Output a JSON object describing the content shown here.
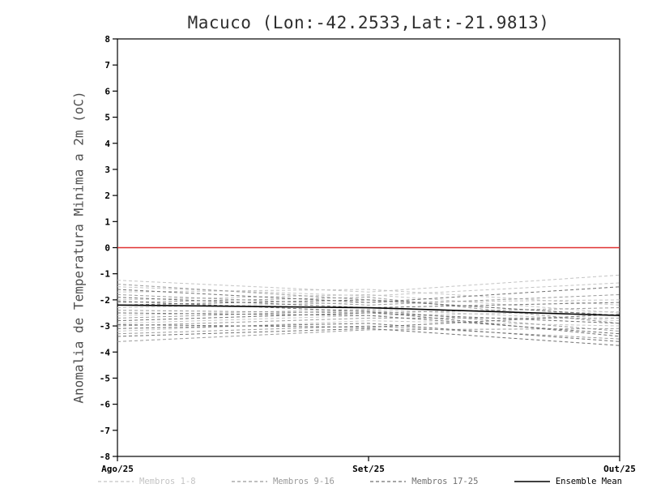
{
  "chart_data": {
    "type": "line",
    "title": "Macuco (Lon:-42.2533,Lat:-21.9813)",
    "ylabel": "Anomalia de Temperatura Minima a 2m (oC)",
    "xlabel": "",
    "categories": [
      "Ago/25",
      "Set/25",
      "Out/25"
    ],
    "ylim": [
      -8,
      8
    ],
    "ytick_step": 1,
    "grid": false,
    "zero_line_color": "#e03030",
    "legend_position": "bottom",
    "groups": [
      {
        "name": "Membros 1-8",
        "color": "#c4c4c4",
        "dash": "4,3"
      },
      {
        "name": "Membros 9-16",
        "color": "#9a9a9a",
        "dash": "4,3"
      },
      {
        "name": "Membros 17-25",
        "color": "#707070",
        "dash": "4,3"
      },
      {
        "name": "Ensemble Mean",
        "color": "#000000",
        "dash": ""
      }
    ],
    "series": [
      {
        "name": "Membro 1",
        "group": 0,
        "values": [
          -1.25,
          -1.7,
          -1.05
        ]
      },
      {
        "name": "Membro 2",
        "group": 0,
        "values": [
          -1.5,
          -1.85,
          -1.35
        ]
      },
      {
        "name": "Membro 3",
        "group": 0,
        "values": [
          -1.7,
          -1.6,
          -2.2
        ]
      },
      {
        "name": "Membro 4",
        "group": 0,
        "values": [
          -2.0,
          -1.8,
          -2.5
        ]
      },
      {
        "name": "Membro 5",
        "group": 0,
        "values": [
          -2.3,
          -2.1,
          -2.0
        ]
      },
      {
        "name": "Membro 6",
        "group": 0,
        "values": [
          -2.6,
          -2.35,
          -2.8
        ]
      },
      {
        "name": "Membro 7",
        "group": 0,
        "values": [
          -2.9,
          -2.6,
          -2.45
        ]
      },
      {
        "name": "Membro 8",
        "group": 0,
        "values": [
          -3.2,
          -2.8,
          -3.0
        ]
      },
      {
        "name": "Membro 9",
        "group": 1,
        "values": [
          -1.4,
          -2.0,
          -2.6
        ]
      },
      {
        "name": "Membro 10",
        "group": 1,
        "values": [
          -1.8,
          -2.2,
          -1.8
        ]
      },
      {
        "name": "Membro 11",
        "group": 1,
        "values": [
          -2.1,
          -1.9,
          -2.9
        ]
      },
      {
        "name": "Membro 12",
        "group": 1,
        "values": [
          -2.4,
          -2.5,
          -2.3
        ]
      },
      {
        "name": "Membro 13",
        "group": 1,
        "values": [
          -2.7,
          -2.4,
          -3.2
        ]
      },
      {
        "name": "Membro 14",
        "group": 1,
        "values": [
          -3.0,
          -2.7,
          -2.7
        ]
      },
      {
        "name": "Membro 15",
        "group": 1,
        "values": [
          -3.3,
          -3.0,
          -3.5
        ]
      },
      {
        "name": "Membro 16",
        "group": 1,
        "values": [
          -3.6,
          -3.15,
          -3.1
        ]
      },
      {
        "name": "Membro 17",
        "group": 2,
        "values": [
          -1.6,
          -2.1,
          -1.5
        ]
      },
      {
        "name": "Membro 18",
        "group": 2,
        "values": [
          -1.9,
          -2.3,
          -2.1
        ]
      },
      {
        "name": "Membro 19",
        "group": 2,
        "values": [
          -2.2,
          -2.0,
          -2.6
        ]
      },
      {
        "name": "Membro 20",
        "group": 2,
        "values": [
          -2.5,
          -2.6,
          -3.3
        ]
      },
      {
        "name": "Membro 21",
        "group": 2,
        "values": [
          -2.8,
          -2.5,
          -2.9
        ]
      },
      {
        "name": "Membro 22",
        "group": 2,
        "values": [
          -3.1,
          -2.9,
          -3.6
        ]
      },
      {
        "name": "Membro 23",
        "group": 2,
        "values": [
          -3.4,
          -3.1,
          -3.75
        ]
      },
      {
        "name": "Membro 24",
        "group": 2,
        "values": [
          -2.05,
          -2.45,
          -3.4
        ]
      },
      {
        "name": "Membro 25",
        "group": 2,
        "values": [
          -2.95,
          -3.05,
          -2.55
        ]
      },
      {
        "name": "Ensemble Mean",
        "group": 3,
        "values": [
          -2.2,
          -2.3,
          -2.6
        ]
      }
    ]
  }
}
